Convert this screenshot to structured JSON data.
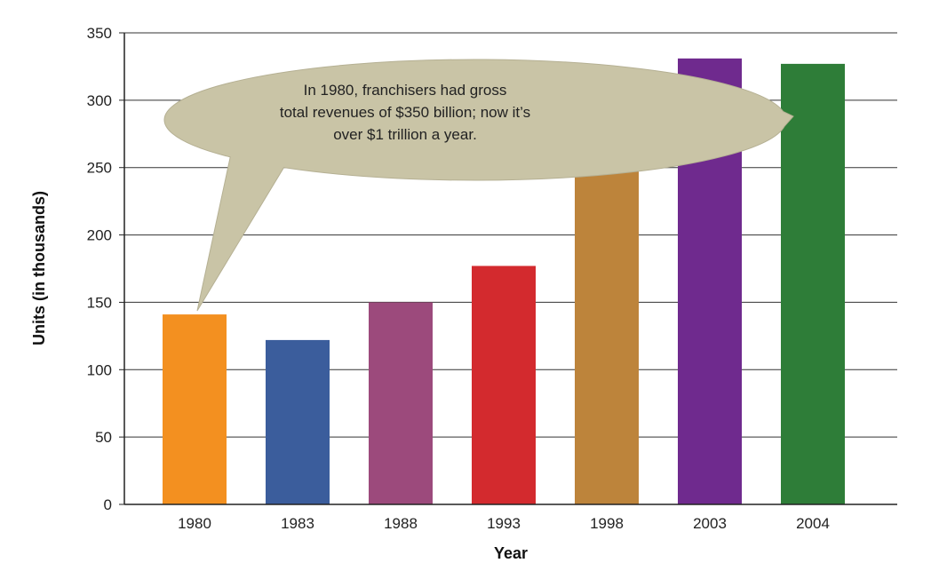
{
  "chart_data": {
    "type": "bar",
    "categories": [
      "1980",
      "1983",
      "1988",
      "1993",
      "1998",
      "2003",
      "2004"
    ],
    "values": [
      141,
      122,
      150,
      177,
      250,
      331,
      327
    ],
    "colors": [
      "#f39020",
      "#3b5d9c",
      "#9c4a7c",
      "#d32a2e",
      "#bd843b",
      "#6f2a8e",
      "#2e7d38"
    ],
    "xlabel": "Year",
    "ylabel": "Units (in thousands)",
    "ylim": [
      0,
      350
    ],
    "yticks": [
      0,
      50,
      100,
      150,
      200,
      250,
      300,
      350
    ],
    "grid": true,
    "callout": {
      "lines": [
        "In 1980, franchisers had gross",
        "total revenues of $350 billion; now it’s",
        "over $1 trillion a year."
      ],
      "fill": "#c9c4a6"
    }
  }
}
